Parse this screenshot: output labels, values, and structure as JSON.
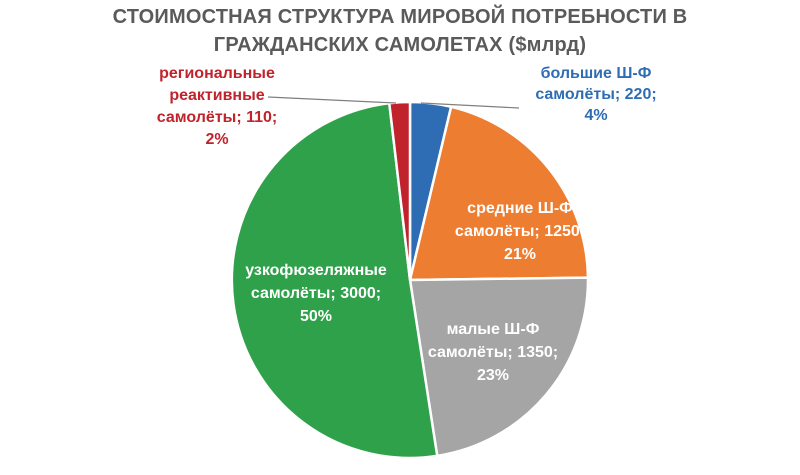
{
  "chart_data": {
    "type": "pie",
    "title_lines": [
      "СТОИМОСТНАЯ СТРУКТУРА МИРОВОЙ ПОТРЕБНОСТИ В",
      "ГРАЖДАНСКИХ САМОЛЕТАХ ($млрд)"
    ],
    "slices": [
      {
        "name": "большие Ш-Ф самолёты",
        "value": 220,
        "percent": 4,
        "color": "#2e6db4",
        "label_color": "#2e6db4",
        "label_lines": [
          "большие Ш-Ф",
          "самолёты; 220;",
          "4%"
        ]
      },
      {
        "name": "средние Ш-Ф самолёты",
        "value": 1250,
        "percent": 21,
        "color": "#ed7d31",
        "label_color": "#ffffff",
        "label_lines": [
          "средние Ш-Ф",
          "самолёты; 1250;",
          "21%"
        ]
      },
      {
        "name": "малые Ш-Ф самолёты",
        "value": 1350,
        "percent": 23,
        "color": "#a5a5a5",
        "label_color": "#ffffff",
        "label_lines": [
          "малые Ш-Ф",
          "самолёты; 1350;",
          "23%"
        ]
      },
      {
        "name": "узкофюзеляжные самолёты",
        "value": 3000,
        "percent": 50,
        "color": "#2ea14a",
        "label_color": "#ffffff",
        "label_lines": [
          "узкофюзеляжные",
          "самолёты; 3000;",
          "50%"
        ]
      },
      {
        "name": "региональные реактивные самолёты",
        "value": 110,
        "percent": 2,
        "color": "#c0232b",
        "label_color": "#c0232b",
        "label_lines": [
          "региональные",
          "реактивные",
          "самолёты; 110;",
          "2%"
        ]
      }
    ]
  }
}
